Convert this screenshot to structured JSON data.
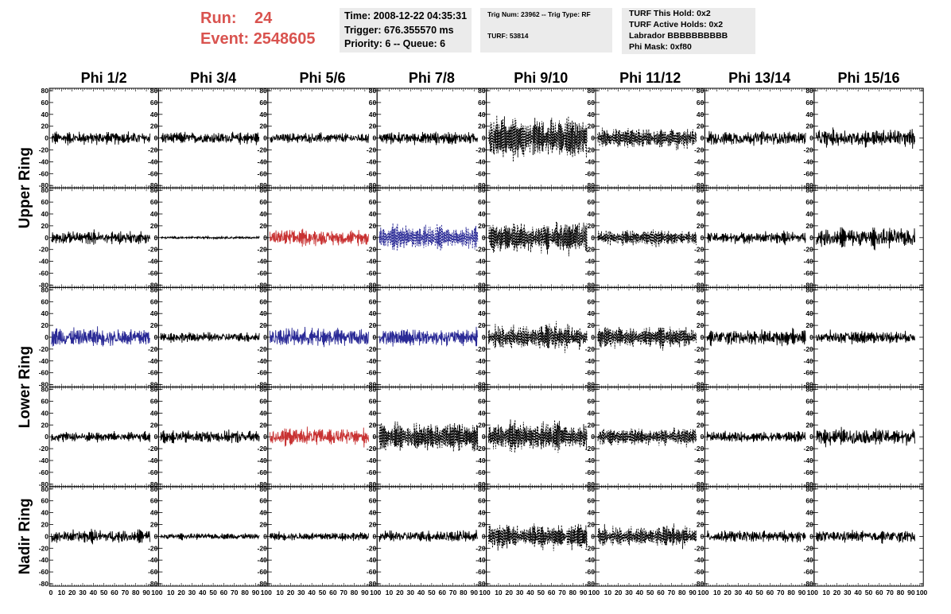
{
  "header": {
    "run_label": "Run:",
    "run_value": "24",
    "event_label": "Event:",
    "event_value": "2548605",
    "time_line": "Time: 2008-12-22 04:35:31",
    "trigger_line": "Trigger: 676.355570 ms",
    "priority_line": "Priority: 6 -- Queue: 6",
    "trig_line": "Trig Num: 23962 -- Trig Type: RF",
    "turf_line": "TURF: 53814",
    "turf_this_hold": "TURF This Hold: 0x2",
    "turf_active_holds": "TURF Active Holds: 0x2",
    "labrador": "Labrador BBBBBBBBBB",
    "phi_mask": "Phi Mask: 0xf80"
  },
  "colors": {
    "red_trace": "#c83232",
    "blue_trace": "#2a2a96",
    "black_trace": "#000000",
    "run_text": "#d9534f",
    "box_bg": "#ebebeb"
  },
  "chart_data": {
    "type": "line",
    "columns": [
      "Phi 1/2",
      "Phi 3/4",
      "Phi 5/6",
      "Phi 7/8",
      "Phi 9/10",
      "Phi 11/12",
      "Phi 13/14",
      "Phi 15/16"
    ],
    "ring_labels": [
      {
        "label": "Upper Ring",
        "rows": [
          0,
          1
        ]
      },
      {
        "label": "Lower Ring",
        "rows": [
          2,
          3
        ]
      },
      {
        "label": "Nadir Ring",
        "rows": [
          4
        ]
      }
    ],
    "xlim": [
      0,
      100
    ],
    "ylim": [
      -80,
      80
    ],
    "y_ticks": [
      -80,
      -60,
      -40,
      -20,
      0,
      20,
      40,
      60,
      80
    ],
    "x_ticks": [
      0,
      10,
      20,
      30,
      40,
      50,
      60,
      70,
      80,
      90,
      100
    ],
    "x_tick_labels": [
      "0",
      "10",
      "20",
      "30",
      "40",
      "50",
      "60",
      "70",
      "80",
      "90",
      "100"
    ],
    "y_tick_labels": [
      "-80",
      "-60",
      "-40",
      "-20",
      "0",
      "20",
      "40",
      "60",
      "80"
    ],
    "panels": [
      [
        {
          "style": "solid",
          "color": "black",
          "amp": 15
        },
        {
          "style": "solid",
          "color": "black",
          "amp": 14
        },
        {
          "style": "solid",
          "color": "black",
          "amp": 12
        },
        {
          "style": "solid",
          "color": "black",
          "amp": 14
        },
        {
          "style": "dashed",
          "color": "black",
          "amp": 38
        },
        {
          "style": "dashed",
          "color": "black",
          "amp": 20
        },
        {
          "style": "solid",
          "color": "black",
          "amp": 17
        },
        {
          "style": "solid",
          "color": "black",
          "amp": 20
        }
      ],
      [
        {
          "style": "solid",
          "color": "black",
          "amp": 15
        },
        {
          "style": "solid",
          "color": "black",
          "amp": 3
        },
        {
          "style": "solid",
          "color": "red",
          "amp": 18
        },
        {
          "style": "dashed",
          "color": "blue",
          "amp": 25
        },
        {
          "style": "dashed",
          "color": "black",
          "amp": 30
        },
        {
          "style": "dashed",
          "color": "black",
          "amp": 15
        },
        {
          "style": "solid",
          "color": "black",
          "amp": 14
        },
        {
          "style": "solid",
          "color": "black",
          "amp": 22
        }
      ],
      [
        {
          "style": "solid",
          "color": "blue",
          "amp": 22
        },
        {
          "style": "solid",
          "color": "black",
          "amp": 12
        },
        {
          "style": "solid",
          "color": "blue",
          "amp": 22
        },
        {
          "style": "solid",
          "color": "blue",
          "amp": 20
        },
        {
          "style": "dashed",
          "color": "black",
          "amp": 25
        },
        {
          "style": "dashed",
          "color": "black",
          "amp": 20
        },
        {
          "style": "solid",
          "color": "black",
          "amp": 17
        },
        {
          "style": "solid",
          "color": "black",
          "amp": 14
        }
      ],
      [
        {
          "style": "solid",
          "color": "black",
          "amp": 12
        },
        {
          "style": "solid",
          "color": "black",
          "amp": 15
        },
        {
          "style": "solid",
          "color": "red",
          "amp": 20
        },
        {
          "style": "dashed",
          "color": "black",
          "amp": 28
        },
        {
          "style": "dashed",
          "color": "black",
          "amp": 30
        },
        {
          "style": "dashed",
          "color": "black",
          "amp": 17
        },
        {
          "style": "solid",
          "color": "black",
          "amp": 12
        },
        {
          "style": "solid",
          "color": "black",
          "amp": 20
        }
      ],
      [
        {
          "style": "solid",
          "color": "black",
          "amp": 15
        },
        {
          "style": "solid",
          "color": "black",
          "amp": 7
        },
        {
          "style": "solid",
          "color": "black",
          "amp": 10
        },
        {
          "style": "solid",
          "color": "black",
          "amp": 14
        },
        {
          "style": "dashed",
          "color": "black",
          "amp": 25
        },
        {
          "style": "dashed",
          "color": "black",
          "amp": 20
        },
        {
          "style": "solid",
          "color": "black",
          "amp": 14
        },
        {
          "style": "solid",
          "color": "black",
          "amp": 14
        }
      ]
    ]
  }
}
